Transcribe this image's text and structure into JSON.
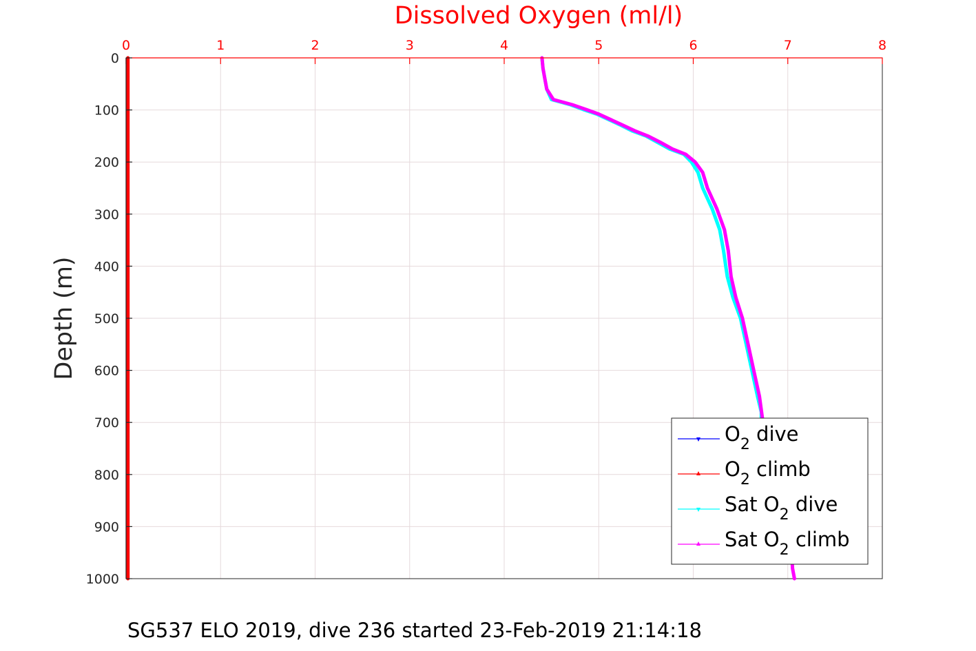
{
  "caption": "SG537 ELO 2019, dive 236 started 23-Feb-2019 21:14:18",
  "chart_data": {
    "type": "line",
    "title": "Dissolved Oxygen (ml/l)",
    "xlabel": "",
    "ylabel": "Depth (m)",
    "xlim": [
      0,
      8
    ],
    "ylim": [
      1000,
      0
    ],
    "y_reversed": true,
    "x_axis_position": "top",
    "x_ticks": [
      "0",
      "1",
      "2",
      "3",
      "4",
      "5",
      "6",
      "7",
      "8"
    ],
    "y_ticks": [
      "0",
      "100",
      "200",
      "300",
      "400",
      "500",
      "600",
      "700",
      "800",
      "900",
      "1000"
    ],
    "grid": true,
    "legend_position": "bottom-right",
    "colors": {
      "title": "#ff0000",
      "x_axis": "#ff0000",
      "y_axis": "#262626",
      "grid": "#e6d9dc"
    },
    "series": [
      {
        "name": "dive",
        "prefix": "O",
        "subscript": "2",
        "color": "#0000ff",
        "marker": "triangle-down",
        "x": [
          0.02,
          0.02
        ],
        "y": [
          0,
          1000
        ]
      },
      {
        "name": "climb",
        "prefix": "O",
        "subscript": "2",
        "color": "#ff0000",
        "marker": "triangle-up",
        "x": [
          0.02,
          0.02
        ],
        "y": [
          0,
          1000
        ]
      },
      {
        "name": "dive",
        "prefix": "Sat O",
        "subscript": "2",
        "color": "#00ffff",
        "marker": "triangle-down",
        "x": [
          4.4,
          4.41,
          4.43,
          4.45,
          4.5,
          4.7,
          4.85,
          4.98,
          5.1,
          5.22,
          5.35,
          5.5,
          5.62,
          5.75,
          5.9,
          5.98,
          6.05,
          6.1,
          6.2,
          6.28,
          6.32,
          6.36,
          6.42,
          6.5,
          6.56,
          6.62,
          6.68,
          6.72,
          6.72,
          6.74
        ],
        "y": [
          0,
          20,
          40,
          60,
          80,
          90,
          100,
          108,
          118,
          128,
          140,
          150,
          162,
          175,
          185,
          200,
          220,
          250,
          290,
          330,
          370,
          420,
          460,
          500,
          550,
          600,
          650,
          680,
          690,
          700
        ]
      },
      {
        "name": "climb",
        "prefix": "Sat O",
        "subscript": "2",
        "color": "#ff00ff",
        "marker": "triangle-up",
        "x": [
          4.4,
          4.41,
          4.43,
          4.45,
          4.52,
          4.72,
          4.88,
          5.0,
          5.12,
          5.24,
          5.38,
          5.52,
          5.65,
          5.78,
          5.92,
          6.02,
          6.1,
          6.15,
          6.25,
          6.33,
          6.37,
          6.4,
          6.45,
          6.52,
          6.58,
          6.64,
          6.7,
          6.73,
          6.76,
          6.82,
          6.9,
          6.98,
          7.04,
          7.05,
          7.07
        ],
        "y": [
          0,
          20,
          40,
          60,
          80,
          90,
          100,
          108,
          118,
          128,
          140,
          150,
          162,
          175,
          185,
          200,
          220,
          250,
          290,
          330,
          370,
          420,
          460,
          500,
          550,
          600,
          650,
          690,
          720,
          760,
          820,
          880,
          940,
          980,
          1000
        ]
      }
    ]
  }
}
